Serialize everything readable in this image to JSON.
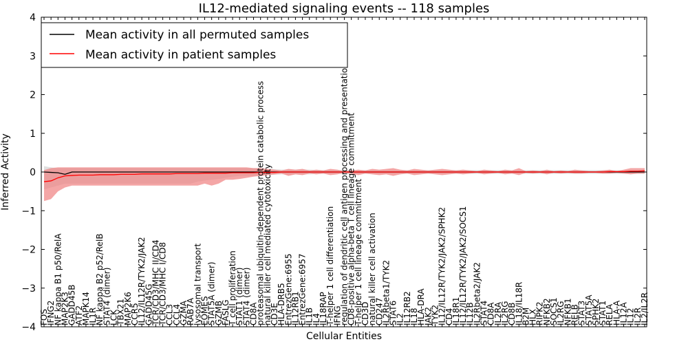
{
  "chart_data": {
    "type": "line",
    "title": "IL12-mediated signaling events -- 118 samples",
    "xlabel": "Cellular Entities",
    "ylabel": "Inferred Activity",
    "ylim": [
      -4,
      4
    ],
    "yticks": [
      -4,
      -3,
      -2,
      -1,
      0,
      1,
      2,
      3,
      4
    ],
    "legend_position": "top-left",
    "categories": [
      "FOS",
      "IFNG2",
      "NF kappa B1 p50/RelA",
      "MAP2K3",
      "GADD45B",
      "ATF2",
      "MAPK14",
      "IL1R",
      "NF kappa B2 p52/RelB",
      "STAT4 (dimer)",
      "LCK",
      "TBX21",
      "MAP2K6",
      "CCR5",
      "IL12/IL12R/TYK2/JAK2",
      "GADD45G",
      "TCR/CD3/MHC II/CD4",
      "TCR/CD3/MHC I/CD8",
      "CCL3",
      "CCL4",
      "GZMA",
      "RAB7A",
      "lysosomal transport",
      "EOMES",
      "STAT5A (dimer)",
      "GZMB",
      "FASLG",
      "T cell proliferation",
      "STAT1 (dimer)",
      "STAT4 (dimer)",
      "CD8A",
      "proteasomal ubiquitin-dependent protein catabolic process",
      "natural killer cell mediated cytotoxicity",
      "CD3E",
      "HLA-DRB5",
      "EntrezGene:6955",
      "IL12RB1",
      "EntrezGene:6957",
      "IL1B",
      "IL4",
      "IL18RAP",
      "T-helper 1 cell differentiation",
      "IFNG",
      "regulation of dendritic cell antigen processing and presentation",
      "CD8-positive alpha-beta T cell lineage commitment",
      "T-helper 1 cell lineage commitment",
      "CD3D",
      "natural killer cell activation",
      "CD247",
      "IL2Rbeta1/TYK2",
      "STAT6",
      "IL2",
      "IL12RB2",
      "IL18",
      "HLA-DRA",
      "JAK2",
      "TYK2",
      "IL12/IL12R/TYK2/JAK2/SPHK2",
      "CD4",
      "IL18R1",
      "IL12/IL12R/TYK2/JAK2/SOCS1",
      "IL12B",
      "IL2Rbeta2/JAK2",
      "STAT4",
      "CD8A",
      "IL2RA",
      "IL2RG",
      "CD8B",
      "IL18/IL18R",
      "B2M",
      "HLX",
      "RIPK2",
      "NFKB2",
      "SOCS1",
      "IL2RG",
      "NFKB1",
      "RELB",
      "STAT3",
      "STAT5A",
      "SPHK2",
      "STAT1",
      "RELA",
      "HLA-A",
      "IL12A",
      "IL12",
      "IL2R",
      "IL2/IL2R"
    ],
    "series": [
      {
        "name": "Mean activity in all permuted samples",
        "color": "#000000",
        "values": [
          0.0,
          -0.01,
          -0.02,
          -0.06,
          0.0,
          0.0,
          0.0,
          0.0,
          0.0,
          0.0,
          0.0,
          0.0,
          0.0,
          0.0,
          0.0,
          0.0,
          0.0,
          0.0,
          0.0,
          0.0,
          0.0,
          0.0,
          0.0,
          0.0,
          0.0,
          0.0,
          0.0,
          0.0,
          0.0,
          0.0,
          0.0,
          0.0,
          0.0,
          0.0,
          0.0,
          0.0,
          0.0,
          0.0,
          0.0,
          0.0,
          0.0,
          0.0,
          0.0,
          0.0,
          0.0,
          0.0,
          0.0,
          0.0,
          0.0,
          0.0,
          0.0,
          0.0,
          0.0,
          0.0,
          0.0,
          0.0,
          0.0,
          0.0,
          0.0,
          0.0,
          0.0,
          0.0,
          0.0,
          0.0,
          0.0,
          0.0,
          0.0,
          0.0,
          0.0,
          0.0,
          0.0,
          0.0,
          0.0,
          0.0,
          0.0,
          0.0,
          0.0,
          0.0,
          0.0,
          0.0,
          0.0,
          0.0,
          0.0,
          0.0,
          0.0,
          0.0,
          0.0
        ],
        "band_upper": [
          0.15,
          0.12,
          0.1,
          0.1,
          0.1,
          0.1,
          0.1,
          0.1,
          0.1,
          0.1,
          0.1,
          0.1,
          0.1,
          0.1,
          0.1,
          0.1,
          0.1,
          0.1,
          0.1,
          0.1,
          0.1,
          0.1,
          0.1,
          0.1,
          0.1,
          0.1,
          0.1,
          0.1,
          0.1,
          0.1,
          0.1,
          0.1,
          0.08,
          0.07,
          0.06,
          0.06,
          0.06,
          0.06,
          0.06,
          0.05,
          0.05,
          0.05,
          0.05,
          0.05,
          0.05,
          0.05,
          0.05,
          0.05,
          0.05,
          0.05,
          0.05,
          0.05,
          0.05,
          0.05,
          0.05,
          0.05,
          0.05,
          0.05,
          0.05,
          0.05,
          0.05,
          0.05,
          0.05,
          0.05,
          0.05,
          0.05,
          0.05,
          0.05,
          0.05,
          0.05,
          0.05,
          0.05,
          0.05,
          0.05,
          0.05,
          0.05,
          0.05,
          0.05,
          0.05,
          0.05,
          0.05,
          0.05,
          0.05,
          0.05,
          0.05,
          0.05,
          0.05
        ],
        "band_lower": [
          -0.45,
          -0.4,
          -0.35,
          -0.3,
          -0.3,
          -0.3,
          -0.3,
          -0.3,
          -0.3,
          -0.3,
          -0.3,
          -0.3,
          -0.3,
          -0.3,
          -0.3,
          -0.3,
          -0.3,
          -0.3,
          -0.3,
          -0.3,
          -0.3,
          -0.3,
          -0.25,
          -0.22,
          -0.2,
          -0.18,
          -0.15,
          -0.12,
          -0.1,
          -0.1,
          -0.1,
          -0.08,
          -0.08,
          -0.07,
          -0.06,
          -0.06,
          -0.06,
          -0.06,
          -0.06,
          -0.05,
          -0.05,
          -0.05,
          -0.05,
          -0.05,
          -0.05,
          -0.05,
          -0.05,
          -0.05,
          -0.05,
          -0.05,
          -0.05,
          -0.05,
          -0.05,
          -0.05,
          -0.05,
          -0.05,
          -0.05,
          -0.05,
          -0.05,
          -0.05,
          -0.05,
          -0.05,
          -0.05,
          -0.05,
          -0.05,
          -0.05,
          -0.05,
          -0.05,
          -0.05,
          -0.05,
          -0.05,
          -0.05,
          -0.05,
          -0.05,
          -0.05,
          -0.05,
          -0.05,
          -0.05,
          -0.05,
          -0.05,
          -0.05,
          -0.05,
          -0.05,
          -0.05,
          -0.05,
          -0.05,
          -0.05
        ]
      },
      {
        "name": "Mean activity in patient samples",
        "color": "#ff0000",
        "values": [
          -0.25,
          -0.23,
          -0.15,
          -0.1,
          -0.09,
          -0.08,
          -0.08,
          -0.08,
          -0.07,
          -0.07,
          -0.07,
          -0.06,
          -0.06,
          -0.06,
          -0.05,
          -0.05,
          -0.05,
          -0.05,
          -0.05,
          -0.04,
          -0.04,
          -0.04,
          -0.04,
          -0.03,
          -0.03,
          -0.03,
          -0.03,
          -0.02,
          -0.02,
          -0.02,
          -0.02,
          -0.01,
          -0.01,
          -0.01,
          0.0,
          0.0,
          0.0,
          0.0,
          0.0,
          0.0,
          0.0,
          0.0,
          0.0,
          0.0,
          0.0,
          0.0,
          0.0,
          0.0,
          0.0,
          0.0,
          0.0,
          0.0,
          0.0,
          0.0,
          0.0,
          0.0,
          0.0,
          0.0,
          0.0,
          0.0,
          0.0,
          0.0,
          0.0,
          0.0,
          0.0,
          0.0,
          0.0,
          0.0,
          0.0,
          0.0,
          0.0,
          0.0,
          0.0,
          0.0,
          0.0,
          0.0,
          0.0,
          0.0,
          0.0,
          0.0,
          0.0,
          0.01,
          0.01,
          0.01,
          0.02,
          0.02,
          0.03
        ],
        "band_upper": [
          0.05,
          0.1,
          0.12,
          0.12,
          0.12,
          0.12,
          0.12,
          0.12,
          0.12,
          0.12,
          0.12,
          0.12,
          0.12,
          0.12,
          0.12,
          0.12,
          0.12,
          0.12,
          0.12,
          0.12,
          0.12,
          0.12,
          0.12,
          0.12,
          0.12,
          0.12,
          0.12,
          0.12,
          0.12,
          0.12,
          0.1,
          0.1,
          0.08,
          0.06,
          0.04,
          0.08,
          0.06,
          0.08,
          0.04,
          0.06,
          0.04,
          0.08,
          0.06,
          0.02,
          0.04,
          0.06,
          0.04,
          0.08,
          0.06,
          0.08,
          0.1,
          0.06,
          0.04,
          0.08,
          0.06,
          0.04,
          0.06,
          0.08,
          0.06,
          0.04,
          0.06,
          0.04,
          0.02,
          0.06,
          0.04,
          0.02,
          0.06,
          0.04,
          0.1,
          0.02,
          0.04,
          0.02,
          0.06,
          0.02,
          0.04,
          0.02,
          0.06,
          0.04,
          0.02,
          0.02,
          0.04,
          0.06,
          0.02,
          0.06,
          0.1,
          0.1,
          0.1
        ],
        "band_lower": [
          -0.75,
          -0.7,
          -0.5,
          -0.4,
          -0.35,
          -0.35,
          -0.35,
          -0.35,
          -0.35,
          -0.35,
          -0.35,
          -0.35,
          -0.35,
          -0.35,
          -0.35,
          -0.35,
          -0.35,
          -0.35,
          -0.35,
          -0.35,
          -0.35,
          -0.35,
          -0.35,
          -0.3,
          -0.35,
          -0.3,
          -0.2,
          -0.2,
          -0.18,
          -0.15,
          -0.12,
          -0.1,
          -0.08,
          -0.06,
          -0.04,
          -0.1,
          -0.06,
          -0.08,
          -0.04,
          -0.06,
          -0.04,
          -0.08,
          -0.06,
          -0.02,
          -0.04,
          -0.08,
          -0.04,
          -0.06,
          -0.08,
          -0.06,
          -0.1,
          -0.06,
          -0.04,
          -0.08,
          -0.06,
          -0.04,
          -0.06,
          -0.08,
          -0.06,
          -0.04,
          -0.06,
          -0.04,
          -0.02,
          -0.06,
          -0.04,
          -0.02,
          -0.06,
          -0.04,
          -0.08,
          -0.02,
          -0.04,
          -0.02,
          -0.06,
          -0.02,
          -0.04,
          -0.02,
          -0.04,
          -0.04,
          -0.02,
          -0.02,
          -0.04,
          -0.04,
          -0.02,
          -0.04,
          -0.06,
          -0.04,
          -0.04
        ]
      }
    ]
  }
}
